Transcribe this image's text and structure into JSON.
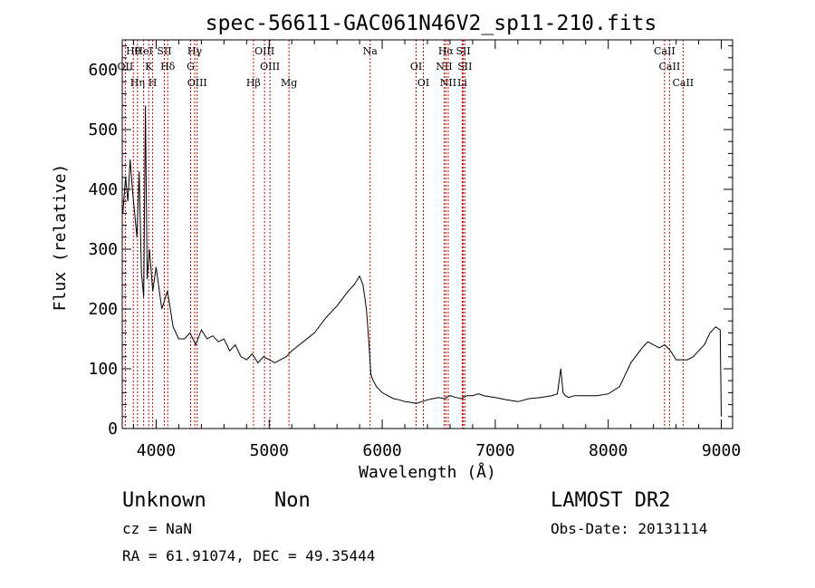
{
  "chart_data": {
    "type": "line",
    "title": "spec-56611-GAC061N46V2_sp11-210.fits",
    "xlabel": "Wavelength (Å)",
    "ylabel": "Flux (relative)",
    "xlim": [
      3700,
      9100
    ],
    "ylim": [
      0,
      650
    ],
    "x_ticks": [
      "4000",
      "5000",
      "6000",
      "7000",
      "8000",
      "9000"
    ],
    "y_ticks": [
      "0",
      "100",
      "200",
      "300",
      "400",
      "500",
      "600"
    ],
    "grid": false,
    "series": [
      {
        "values_note": "",
        "x": [
          3705,
          3730,
          3750,
          3770,
          3790,
          3810,
          3830,
          3850,
          3870,
          3890,
          3905,
          3920,
          3940,
          3970,
          4000,
          4050,
          4100,
          4150,
          4200,
          4250,
          4300,
          4350,
          4400,
          4450,
          4500,
          4550,
          4600,
          4650,
          4700,
          4750,
          4800,
          4850,
          4900,
          4950,
          5000,
          5050,
          5100,
          5150,
          5200,
          5300,
          5400,
          5500,
          5600,
          5700,
          5750,
          5800,
          5830,
          5860,
          5880,
          5900,
          5920,
          5950,
          6000,
          6050,
          6100,
          6150,
          6200,
          6250,
          6300,
          6350,
          6400,
          6450,
          6500,
          6550,
          6600,
          6650,
          6700,
          6750,
          6800,
          6850,
          6900,
          7000,
          7100,
          7200,
          7300,
          7400,
          7500,
          7550,
          7580,
          7600,
          7620,
          7650,
          7700,
          7800,
          7900,
          8000,
          8100,
          8200,
          8300,
          8350,
          8400,
          8450,
          8500,
          8550,
          8600,
          8650,
          8700,
          8750,
          8800,
          8850,
          8900,
          8950,
          8990,
          9000
        ],
        "y": [
          360,
          420,
          380,
          450,
          400,
          360,
          320,
          430,
          260,
          220,
          540,
          250,
          300,
          230,
          270,
          200,
          230,
          170,
          150,
          150,
          160,
          140,
          165,
          150,
          155,
          145,
          150,
          130,
          140,
          120,
          115,
          125,
          110,
          120,
          115,
          110,
          115,
          120,
          130,
          145,
          160,
          185,
          205,
          230,
          240,
          255,
          240,
          200,
          150,
          90,
          80,
          70,
          60,
          55,
          50,
          48,
          45,
          44,
          42,
          45,
          48,
          50,
          52,
          50,
          55,
          52,
          50,
          55,
          55,
          58,
          55,
          52,
          48,
          45,
          50,
          52,
          55,
          58,
          100,
          60,
          55,
          52,
          55,
          55,
          55,
          58,
          70,
          110,
          135,
          145,
          140,
          135,
          140,
          130,
          115,
          115,
          115,
          120,
          130,
          140,
          160,
          170,
          165,
          20
        ]
      }
    ],
    "lines": [
      {
        "label": "Hθ",
        "x": 3798
      },
      {
        "label": "OII",
        "x": 3727
      },
      {
        "label": "Hη",
        "x": 3835
      },
      {
        "label": "HeI",
        "x": 3889
      },
      {
        "label": "K",
        "x": 3934
      },
      {
        "label": "H",
        "x": 3969
      },
      {
        "label": "SII",
        "x": 4072
      },
      {
        "label": "Hδ",
        "x": 4102
      },
      {
        "label": "OIII",
        "x": 4363
      },
      {
        "label": "Hγ",
        "x": 4341
      },
      {
        "label": "G",
        "x": 4305
      },
      {
        "label": "Hβ",
        "x": 4861
      },
      {
        "label": "OIII",
        "x": 4959
      },
      {
        "label": "OIII",
        "x": 5007
      },
      {
        "label": "Mg",
        "x": 5175
      },
      {
        "label": "Na",
        "x": 5893
      },
      {
        "label": "OI",
        "x": 6300
      },
      {
        "label": "OI",
        "x": 6364
      },
      {
        "label": "Hα",
        "x": 6563
      },
      {
        "label": "NII",
        "x": 6548
      },
      {
        "label": "NII",
        "x": 6584
      },
      {
        "label": "SII",
        "x": 6717
      },
      {
        "label": "SII",
        "x": 6731
      },
      {
        "label": "Li",
        "x": 6708
      },
      {
        "label": "CaII",
        "x": 8498
      },
      {
        "label": "CaII",
        "x": 8542
      },
      {
        "label": "CaII",
        "x": 8662
      }
    ]
  },
  "info": {
    "class": "Unknown",
    "subclass": "Non",
    "survey": "LAMOST DR2",
    "cz": "cz = NaN",
    "obs_date": "Obs-Date: 20131114",
    "radec": "RA =  61.91074, DEC =  49.35444"
  },
  "colors": {
    "axis": "#000000",
    "spectrum": "#000000",
    "line_marker": "#cc0000"
  }
}
